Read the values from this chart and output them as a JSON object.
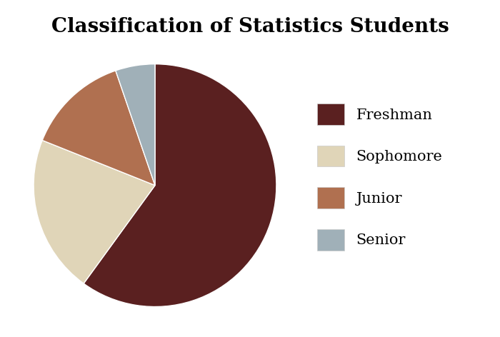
{
  "title": "Classification of Statistics Students",
  "labels": [
    "Freshman",
    "Sophomore",
    "Junior",
    "Senior"
  ],
  "values": [
    57,
    20,
    13,
    5
  ],
  "colors": [
    "#5a2020",
    "#e0d5b8",
    "#b07050",
    "#a0b0b8"
  ],
  "startangle": 90,
  "title_fontsize": 20,
  "legend_fontsize": 15,
  "background_color": "#ffffff"
}
